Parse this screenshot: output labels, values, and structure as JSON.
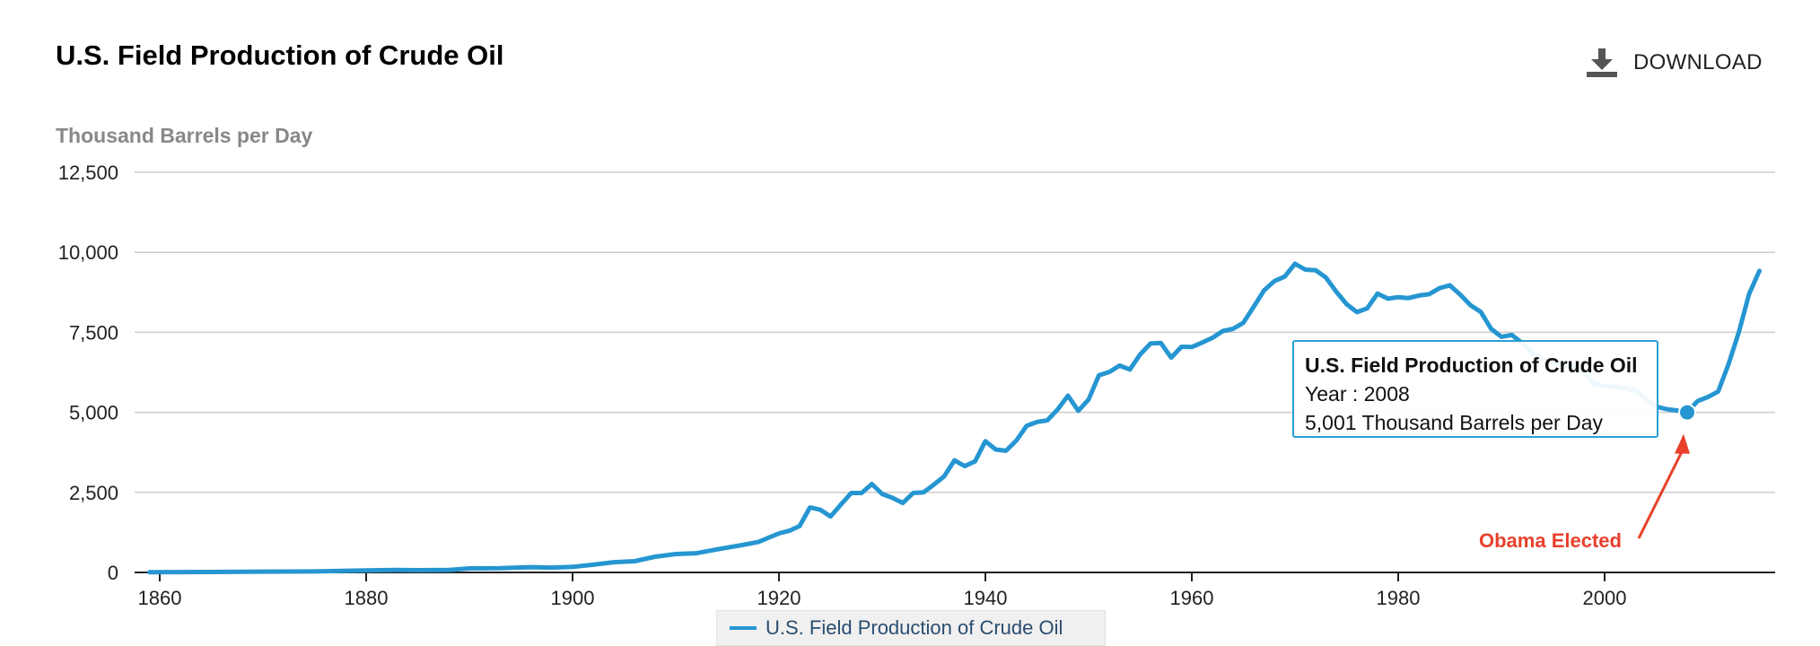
{
  "header": {
    "title": "U.S. Field Production of Crude Oil",
    "download_label": "DOWNLOAD"
  },
  "colors": {
    "series": "#2596d1",
    "annotation": "#e8402b",
    "grid": "#cccccc"
  },
  "tooltip": {
    "title": "U.S. Field Production of Crude Oil",
    "line1": "Year : 2008",
    "line2": "5,001 Thousand Barrels per Day"
  },
  "annotation": {
    "text": "Obama Elected"
  },
  "chart_data": {
    "type": "line",
    "title": "U.S. Field Production of Crude Oil",
    "ylabel": "Thousand Barrels per Day",
    "xlabel": "",
    "xlim": [
      1859,
      2017
    ],
    "ylim": [
      0,
      12500
    ],
    "x_ticks": [
      1860,
      1880,
      1900,
      1920,
      1940,
      1960,
      1980,
      2000
    ],
    "y_ticks": [
      0,
      2500,
      5000,
      7500,
      10000,
      12500
    ],
    "y_tick_labels": [
      "0",
      "2,500",
      "5,000",
      "7,500",
      "10,000",
      "12,500"
    ],
    "legend": "bottom-center",
    "grid": true,
    "highlight": {
      "year": 2008,
      "value": 5001
    },
    "series": [
      {
        "name": "U.S. Field Production of Crude Oil",
        "x": [
          1859,
          1865,
          1870,
          1875,
          1880,
          1883,
          1885,
          1888,
          1890,
          1893,
          1896,
          1898,
          1900,
          1902,
          1904,
          1906,
          1908,
          1910,
          1912,
          1914,
          1916,
          1918,
          1920,
          1921,
          1922,
          1923,
          1924,
          1925,
          1926,
          1927,
          1928,
          1929,
          1930,
          1931,
          1932,
          1933,
          1934,
          1935,
          1936,
          1937,
          1938,
          1939,
          1940,
          1941,
          1942,
          1943,
          1944,
          1945,
          1946,
          1947,
          1948,
          1949,
          1950,
          1951,
          1952,
          1953,
          1954,
          1955,
          1956,
          1957,
          1958,
          1959,
          1960,
          1961,
          1962,
          1963,
          1964,
          1965,
          1966,
          1967,
          1968,
          1969,
          1970,
          1971,
          1972,
          1973,
          1974,
          1975,
          1976,
          1977,
          1978,
          1979,
          1980,
          1981,
          1982,
          1983,
          1984,
          1985,
          1986,
          1987,
          1988,
          1989,
          1990,
          1991,
          1992,
          1993,
          1994,
          1995,
          1996,
          1997,
          1998,
          1999,
          2000,
          2001,
          2002,
          2003,
          2004,
          2005,
          2006,
          2007,
          2008,
          2009,
          2010,
          2011,
          2012,
          2013,
          2014,
          2015
        ],
        "values": [
          5,
          15,
          25,
          30,
          65,
          75,
          70,
          75,
          125,
          135,
          165,
          150,
          175,
          240,
          320,
          350,
          490,
          575,
          600,
          720,
          830,
          950,
          1220,
          1300,
          1450,
          2030,
          1960,
          1750,
          2120,
          2480,
          2480,
          2760,
          2450,
          2330,
          2170,
          2480,
          2500,
          2740,
          3000,
          3500,
          3320,
          3470,
          4100,
          3840,
          3800,
          4120,
          4580,
          4700,
          4750,
          5090,
          5520,
          5050,
          5400,
          6160,
          6260,
          6460,
          6340,
          6810,
          7150,
          7170,
          6710,
          7050,
          7040,
          7180,
          7330,
          7540,
          7610,
          7800,
          8300,
          8810,
          9100,
          9240,
          9640,
          9460,
          9440,
          9210,
          8770,
          8380,
          8130,
          8250,
          8710,
          8550,
          8600,
          8570,
          8650,
          8690,
          8880,
          8970,
          8680,
          8350,
          8140,
          7610,
          7360,
          7420,
          7170,
          6850,
          6660,
          6560,
          6470,
          6450,
          6250,
          5880,
          5820,
          5800,
          5750,
          5680,
          5420,
          5180,
          5100,
          5060,
          5001,
          5350,
          5480,
          5650,
          6500,
          7500,
          8700,
          9420
        ]
      }
    ]
  }
}
